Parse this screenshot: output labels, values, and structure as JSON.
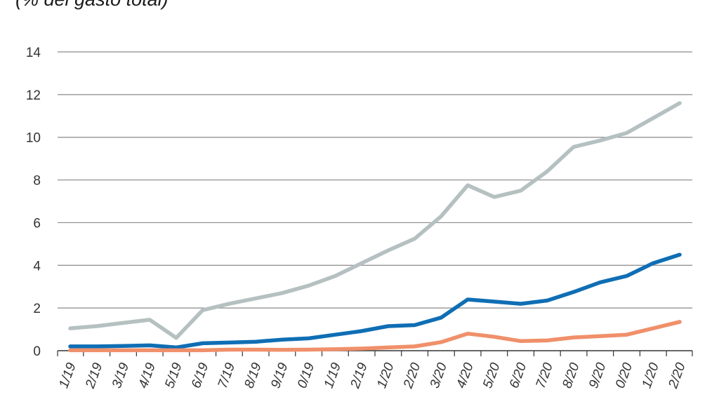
{
  "chart_data": {
    "type": "line",
    "title": "(% del gasto total)",
    "xlabel": "",
    "ylabel": "",
    "ylim": [
      0,
      14
    ],
    "yticks": [
      "0",
      "2",
      "4",
      "6",
      "8",
      "10",
      "12",
      "14"
    ],
    "grid": true,
    "categories": [
      "1/19",
      "2/19",
      "3/19",
      "4/19",
      "5/19",
      "6/19",
      "7/19",
      "8/19",
      "9/19",
      "0/19",
      "1/19",
      "2/19",
      "1/20",
      "2/20",
      "3/20",
      "4/20",
      "5/20",
      "6/20",
      "7/20",
      "8/20",
      "9/20",
      "0/20",
      "1/20",
      "2/20"
    ],
    "series": [
      {
        "color": "#b5c0c1",
        "values": [
          1.05,
          1.15,
          1.3,
          1.45,
          0.6,
          1.9,
          2.2,
          2.45,
          2.7,
          3.05,
          3.5,
          4.1,
          4.7,
          5.25,
          6.3,
          7.75,
          7.2,
          7.5,
          8.4,
          9.55,
          9.85,
          10.2,
          10.9,
          11.6
        ]
      },
      {
        "color": "#0f6eb4",
        "values": [
          0.2,
          0.2,
          0.22,
          0.25,
          0.15,
          0.35,
          0.38,
          0.42,
          0.52,
          0.58,
          0.75,
          0.92,
          1.15,
          1.2,
          1.55,
          2.4,
          2.3,
          2.2,
          2.35,
          2.75,
          3.2,
          3.5,
          4.1,
          4.5
        ]
      },
      {
        "color": "#f0906a",
        "values": [
          0.02,
          0.02,
          0.02,
          0.02,
          0.02,
          0.02,
          0.05,
          0.05,
          0.04,
          0.05,
          0.07,
          0.1,
          0.15,
          0.2,
          0.4,
          0.8,
          0.65,
          0.45,
          0.48,
          0.62,
          0.68,
          0.75,
          1.05,
          1.35
        ]
      }
    ]
  }
}
